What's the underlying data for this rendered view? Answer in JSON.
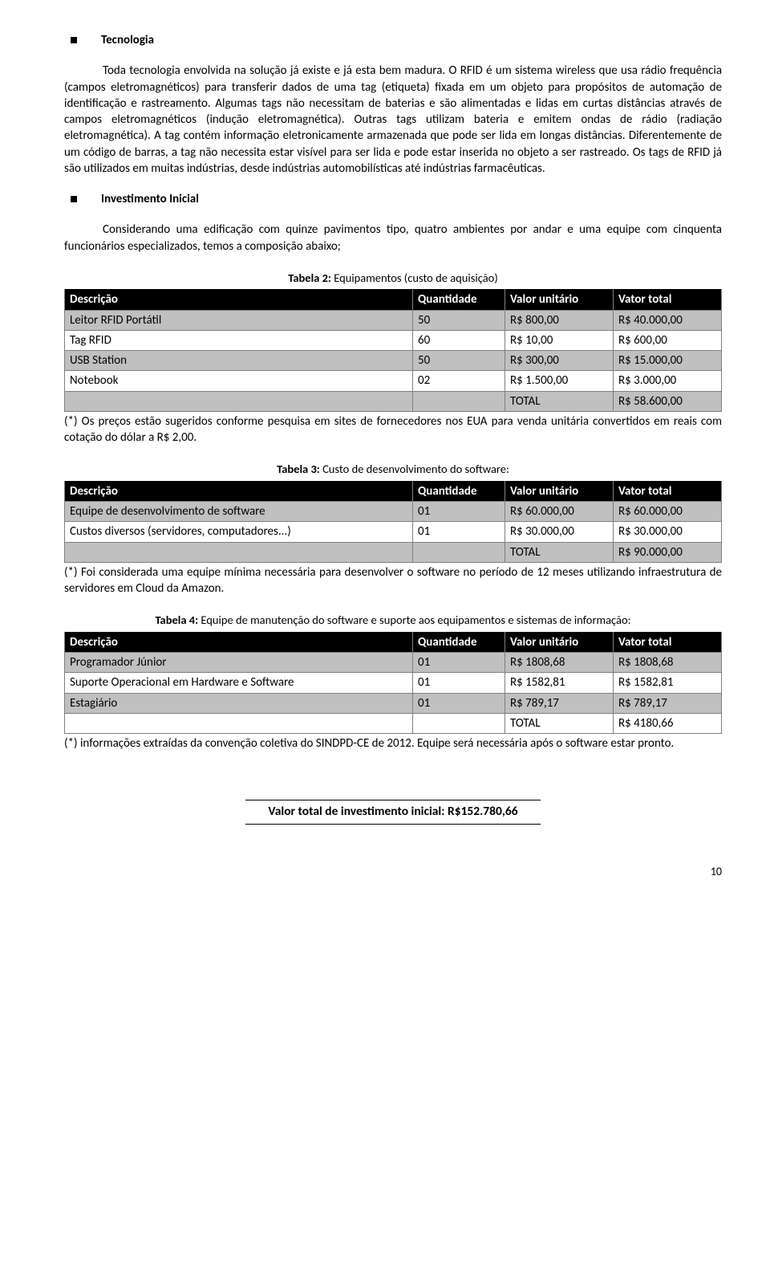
{
  "section1": {
    "title": "Tecnologia",
    "para": "Toda tecnologia envolvida na solução já existe e já esta bem madura. O RFID é um sistema wireless que usa rádio frequência (campos eletromagnéticos) para transferir dados de uma tag (etiqueta) fixada em um objeto para propósitos de automação de identificação e rastreamento. Algumas tags não necessitam de baterias e são alimentadas e lidas em curtas distâncias através de campos eletromagnéticos (indução eletromagnética). Outras tags utilizam bateria e emitem ondas de rádio (radiação eletromagnética). A tag contém informação eletronicamente armazenada que pode ser lida em longas distâncias. Diferentemente de um código de barras, a tag não necessita estar visível para ser lida e pode estar inserida no objeto a ser rastreado. Os tags de RFID já são utilizados em muitas indústrias, desde indústrias automobilísticas até indústrias farmacêuticas."
  },
  "section2": {
    "title": "Investimento Inicial",
    "para": "Considerando uma edificação com quinze pavimentos tipo, quatro ambientes por andar e uma equipe com cinquenta funcionários especializados, temos a composição abaixo;"
  },
  "table2": {
    "caption_bold": "Tabela 2:",
    "caption_rest": " Equipamentos (custo de aquisição)",
    "h1": "Descrição",
    "h2": "Quantidade",
    "h3": "Valor unitário",
    "h4": "Vator total",
    "r1c1": "Leitor RFID Portátil",
    "r1c2": "50",
    "r1c3": "R$ 800,00",
    "r1c4": "R$ 40.000,00",
    "r2c1": "Tag RFID",
    "r2c2": "60",
    "r2c3": "R$ 10,00",
    "r2c4": "R$ 600,00",
    "r3c1": "USB Station",
    "r3c2": "50",
    "r3c3": "R$ 300,00",
    "r3c4": "R$ 15.000,00",
    "r4c1": "Notebook",
    "r4c2": "02",
    "r4c3": "R$ 1.500,00",
    "r4c4": "R$ 3.000,00",
    "tot_label": "TOTAL",
    "tot_val": "R$ 58.600,00",
    "footnote": "(*) Os preços estão sugeridos conforme pesquisa em sites de fornecedores nos EUA para venda unitária convertidos em reais com cotação do dólar a R$ 2,00."
  },
  "table3": {
    "caption_bold": "Tabela 3:",
    "caption_rest": " Custo de desenvolvimento do software:",
    "h1": "Descrição",
    "h2": "Quantidade",
    "h3": "Valor unitário",
    "h4": "Vator total",
    "r1c1": "Equipe de desenvolvimento de software",
    "r1c2": "01",
    "r1c3": "R$ 60.000,00",
    "r1c4": "R$ 60.000,00",
    "r2c1": "Custos diversos (servidores, computadores...)",
    "r2c2": "01",
    "r2c3": "R$ 30.000,00",
    "r2c4": "R$ 30.000,00",
    "tot_label": "TOTAL",
    "tot_val": "R$ 90.000,00",
    "footnote": "(*) Foi considerada uma equipe mínima necessária para desenvolver o software no período de 12 meses utilizando infraestrutura de servidores em Cloud da Amazon."
  },
  "table4": {
    "caption_bold": "Tabela 4:",
    "caption_rest": " Equipe de manutenção do software e suporte aos equipamentos e sistemas de informação:",
    "h1": "Descrição",
    "h2": "Quantidade",
    "h3": "Valor unitário",
    "h4": "Vator total",
    "r1c1": "Programador Júnior",
    "r1c2": "01",
    "r1c3": "R$ 1808,68",
    "r1c4": "R$ 1808,68",
    "r2c1": "Suporte Operacional em Hardware e Software",
    "r2c2": "01",
    "r2c3": "R$ 1582,81",
    "r2c4": "R$ 1582,81",
    "r3c1": "Estagiário",
    "r3c2": "01",
    "r3c3": "R$ 789,17",
    "r3c4": "R$ 789,17",
    "tot_label": "TOTAL",
    "tot_val": "R$ 4180,66",
    "footnote": "(*) informações extraídas da convenção coletiva do SINDPD-CE de 2012. Equipe será necessária após o software estar pronto."
  },
  "investment_total": "Valor total de investimento inicial: R$152.780,66",
  "page_number": "10"
}
